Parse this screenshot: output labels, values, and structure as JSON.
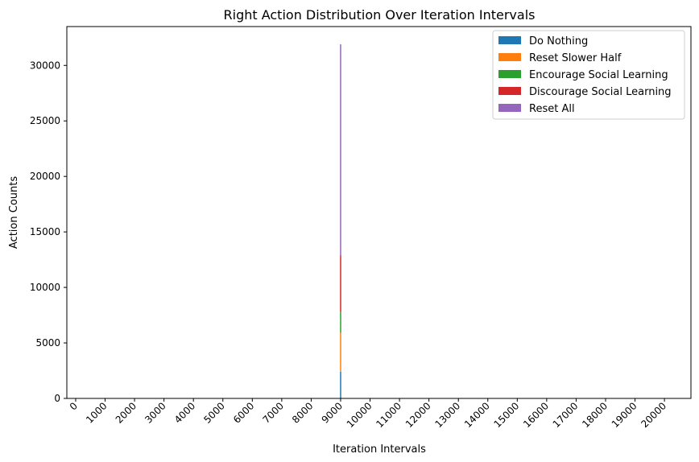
{
  "chart_data": {
    "type": "bar",
    "stacked": true,
    "title": "Right Action Distribution Over Iteration Intervals",
    "xlabel": "Iteration Intervals",
    "ylabel": "Action Counts",
    "x_ticks": [
      "0",
      "1000",
      "2000",
      "3000",
      "4000",
      "5000",
      "6000",
      "7000",
      "8000",
      "9000",
      "10000",
      "11000",
      "12000",
      "13000",
      "14000",
      "15000",
      "16000",
      "17000",
      "18000",
      "19000",
      "20000"
    ],
    "y_ticks": [
      "0",
      "5000",
      "10000",
      "15000",
      "20000",
      "25000",
      "30000"
    ],
    "ylim": [
      0,
      33500
    ],
    "xlim": [
      -300,
      20900
    ],
    "legend_position": "top-right",
    "grid": false,
    "bar_x": 9000,
    "series": [
      {
        "name": "Do Nothing",
        "color": "#1f77b4",
        "value": 2400
      },
      {
        "name": "Reset Slower Half",
        "color": "#ff7f0e",
        "value": 3500
      },
      {
        "name": "Encourage Social Learning",
        "color": "#2ca02c",
        "value": 1900
      },
      {
        "name": "Discourage Social Learning",
        "color": "#d62728",
        "value": 5100
      },
      {
        "name": "Reset All",
        "color": "#9467bd",
        "value": 19000
      }
    ]
  }
}
